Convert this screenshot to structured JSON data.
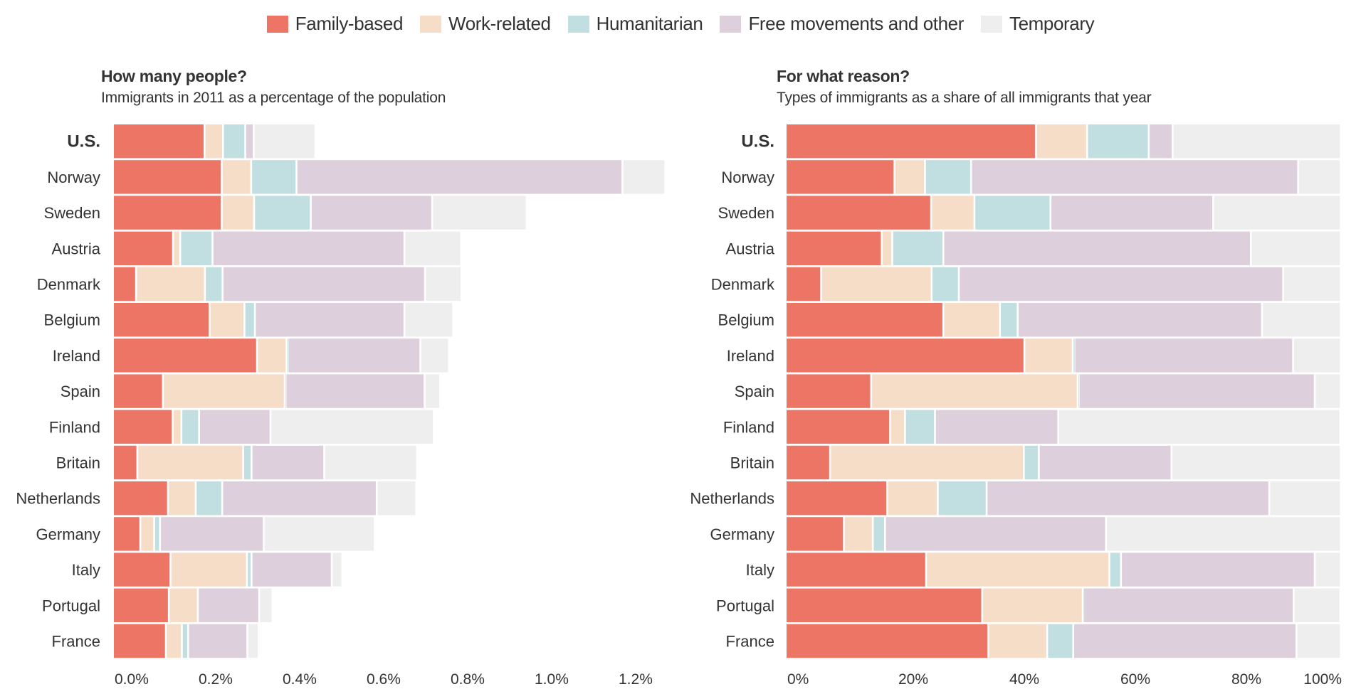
{
  "legend": [
    {
      "key": "family",
      "label": "Family-based",
      "color": "#EC7566"
    },
    {
      "key": "work",
      "label": "Work-related",
      "color": "#F5DDC8"
    },
    {
      "key": "humanitarian",
      "label": "Humanitarian",
      "color": "#C1DEE0"
    },
    {
      "key": "free",
      "label": "Free movements and other",
      "color": "#DECFDD"
    },
    {
      "key": "temporary",
      "label": "Temporary",
      "color": "#EEEEEE"
    }
  ],
  "left_panel": {
    "title": "How many people?",
    "subtitle": "Immigrants in 2011 as a percentage of the population"
  },
  "right_panel": {
    "title": "For what reason?",
    "subtitle": "Types of immigrants as a share of all immigrants that year"
  },
  "chart_data": [
    {
      "type": "bar",
      "orientation": "horizontal",
      "stacked": true,
      "title": "How many people?",
      "subtitle": "Immigrants in 2011 as a percentage of the population",
      "xlabel": "",
      "ylabel": "",
      "unit": "% of population",
      "xlim": [
        0,
        1.3
      ],
      "xticks": [
        0,
        0.2,
        0.4,
        0.6,
        0.8,
        1.0,
        1.2
      ],
      "xtick_labels": [
        "0.0%",
        "0.2%",
        "0.4%",
        "0.6%",
        "0.8%",
        "1.0%",
        "1.2%"
      ],
      "grid": false,
      "legend": "top-center",
      "categories": [
        "U.S.",
        "Norway",
        "Sweden",
        "Austria",
        "Denmark",
        "Belgium",
        "Ireland",
        "Spain",
        "Finland",
        "Britain",
        "Netherlands",
        "Germany",
        "Italy",
        "Portugal",
        "France"
      ],
      "highlight": "U.S.",
      "series": [
        {
          "name": "Family-based",
          "values": [
            0.218,
            0.259,
            0.259,
            0.143,
            0.055,
            0.23,
            0.343,
            0.119,
            0.142,
            0.058,
            0.131,
            0.065,
            0.137,
            0.133,
            0.126
          ]
        },
        {
          "name": "Work-related",
          "values": [
            0.044,
            0.07,
            0.077,
            0.017,
            0.164,
            0.083,
            0.07,
            0.29,
            0.021,
            0.252,
            0.066,
            0.033,
            0.182,
            0.069,
            0.038
          ]
        },
        {
          "name": "Humanitarian",
          "values": [
            0.053,
            0.108,
            0.135,
            0.077,
            0.042,
            0.025,
            0.003,
            0.002,
            0.042,
            0.02,
            0.063,
            0.014,
            0.011,
            0.001,
            0.015
          ]
        },
        {
          "name": "Free movements and other",
          "values": [
            0.02,
            0.776,
            0.289,
            0.457,
            0.482,
            0.356,
            0.316,
            0.331,
            0.17,
            0.173,
            0.368,
            0.247,
            0.191,
            0.145,
            0.141
          ]
        },
        {
          "name": "Temporary",
          "values": [
            0.147,
            0.102,
            0.225,
            0.135,
            0.087,
            0.116,
            0.068,
            0.037,
            0.389,
            0.221,
            0.094,
            0.264,
            0.025,
            0.032,
            0.027
          ]
        }
      ]
    },
    {
      "type": "bar",
      "orientation": "horizontal",
      "stacked": true,
      "title": "For what reason?",
      "subtitle": "Types of immigrants as a share of all immigrants that year",
      "xlabel": "",
      "ylabel": "",
      "unit": "% of immigrants",
      "xlim": [
        0,
        100
      ],
      "xticks": [
        0,
        20,
        40,
        60,
        80,
        100
      ],
      "xtick_labels": [
        "0%",
        "20%",
        "40%",
        "60%",
        "80%",
        "100%"
      ],
      "grid": false,
      "legend": "top-center",
      "categories": [
        "U.S.",
        "Norway",
        "Sweden",
        "Austria",
        "Denmark",
        "Belgium",
        "Ireland",
        "Spain",
        "Finland",
        "Britain",
        "Netherlands",
        "Germany",
        "Italy",
        "Portugal",
        "France"
      ],
      "highlight": "U.S.",
      "series": [
        {
          "name": "Family-based",
          "values": [
            45.1,
            19.6,
            26.2,
            17.3,
            6.4,
            28.4,
            43.0,
            15.4,
            18.8,
            8.0,
            18.3,
            10.5,
            25.3,
            35.4,
            36.5
          ]
        },
        {
          "name": "Work-related",
          "values": [
            9.2,
            5.5,
            7.8,
            1.9,
            19.9,
            10.2,
            8.7,
            37.2,
            2.7,
            34.9,
            9.1,
            5.2,
            33.0,
            18.1,
            10.6
          ]
        },
        {
          "name": "Humanitarian",
          "values": [
            11.1,
            8.3,
            13.7,
            9.2,
            4.9,
            3.2,
            0.3,
            0.2,
            5.4,
            2.7,
            8.8,
            2.2,
            2.1,
            0.1,
            4.7
          ]
        },
        {
          "name": "Free movements and other",
          "values": [
            4.3,
            58.9,
            29.3,
            55.4,
            58.4,
            44.0,
            39.4,
            42.5,
            22.2,
            23.9,
            50.9,
            39.8,
            34.9,
            37.9,
            40.2
          ]
        },
        {
          "name": "Temporary",
          "values": [
            30.3,
            7.7,
            23.0,
            16.2,
            10.4,
            14.2,
            8.6,
            4.7,
            50.8,
            30.5,
            12.9,
            42.3,
            4.7,
            8.4,
            8.0
          ]
        }
      ]
    }
  ]
}
